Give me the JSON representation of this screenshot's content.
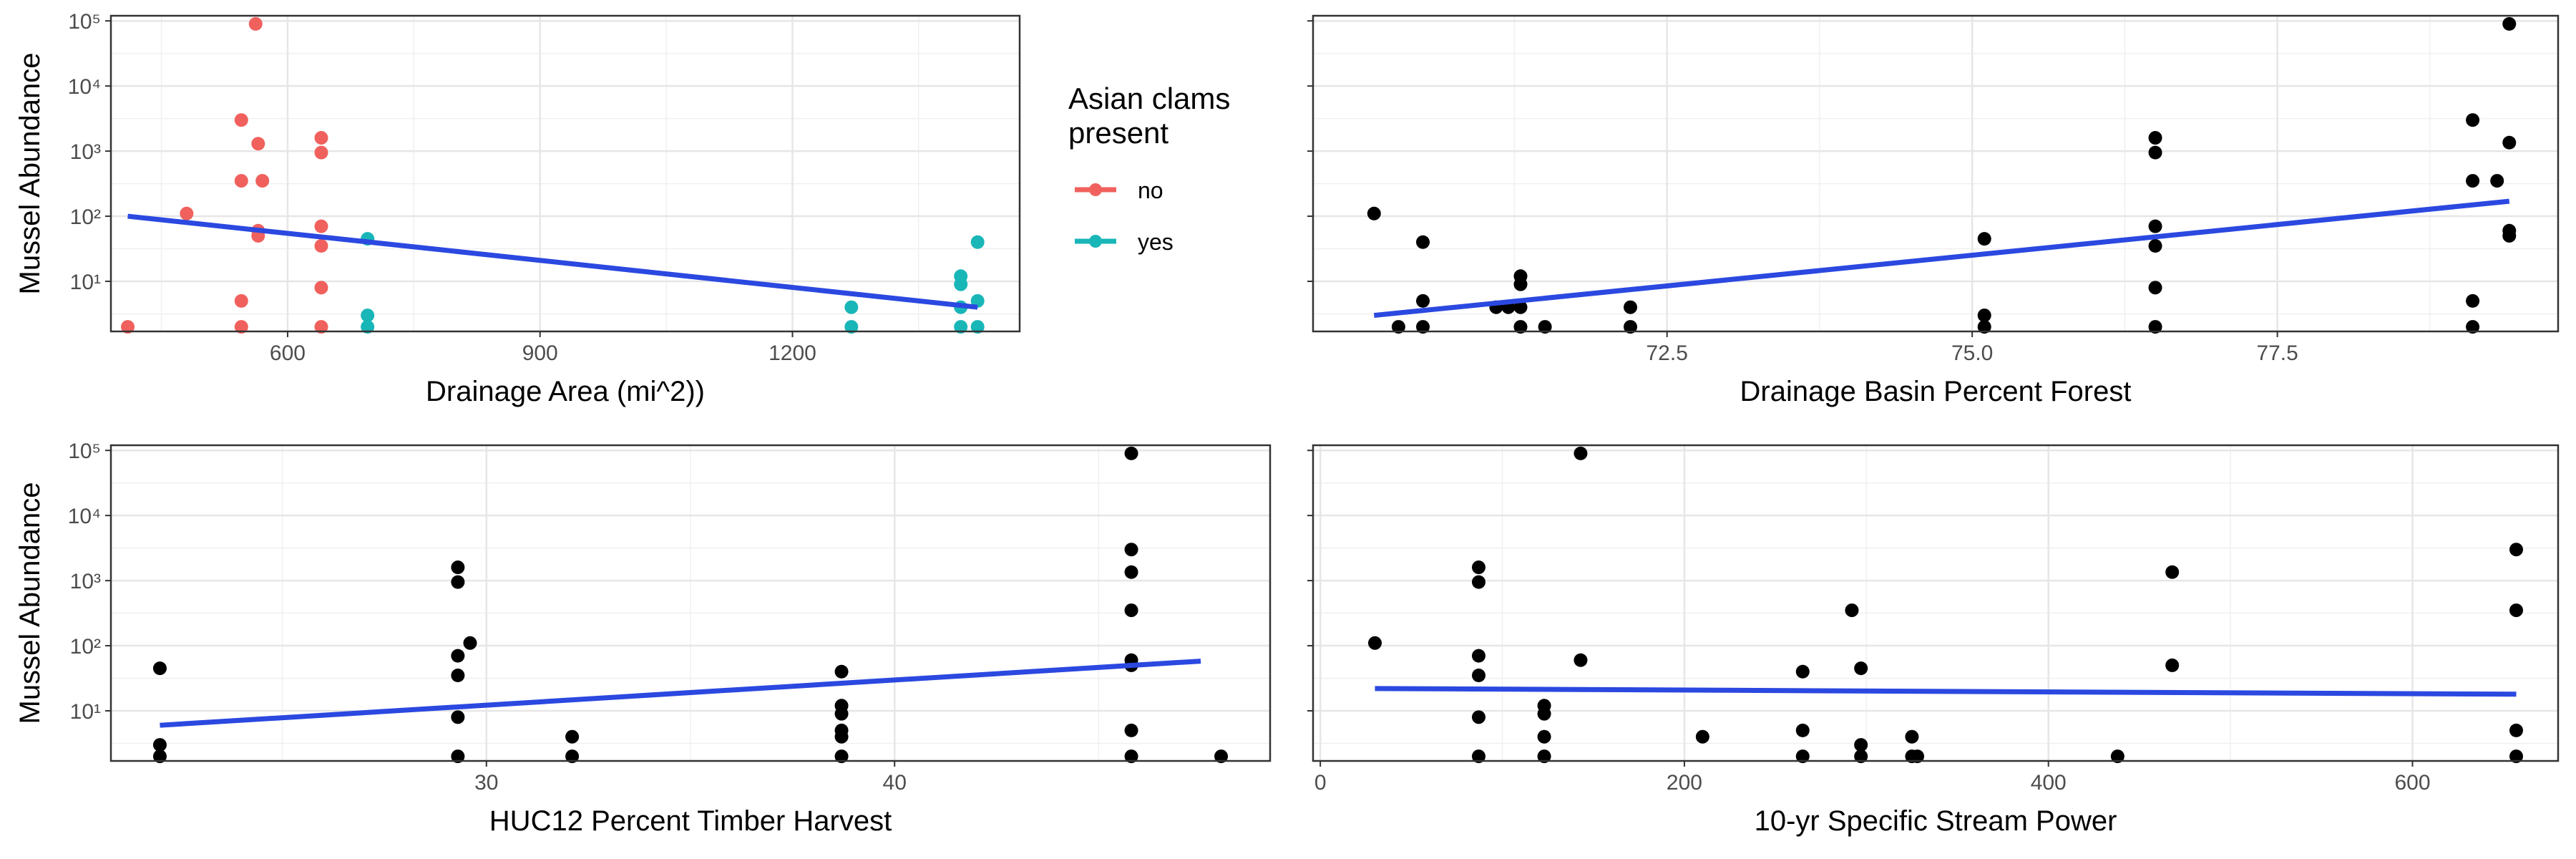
{
  "colors": {
    "no": "#F0615D",
    "yes": "#19B6B8",
    "fit": "#2B48E0",
    "point": "#000000"
  },
  "legend": {
    "title_line1": "Asian clams",
    "title_line2": "present",
    "items": [
      "no",
      "yes"
    ]
  },
  "chart_data": [
    {
      "type": "scatter",
      "xlabel": "Drainage Area (mi^2))",
      "ylabel": "Mussel Abundance",
      "y_scale": "log10",
      "xlim": [
        390,
        1470
      ],
      "ylim": [
        1.7,
        120000
      ],
      "x_ticks": [
        600,
        900,
        1200
      ],
      "y_ticks": [
        {
          "v": 10,
          "label": "10¹"
        },
        {
          "v": 100,
          "label": "10²"
        },
        {
          "v": 1000,
          "label": "10³"
        },
        {
          "v": 10000,
          "label": "10⁴"
        },
        {
          "v": 100000,
          "label": "10⁵"
        }
      ],
      "series": [
        {
          "name": "no",
          "color_key": "no",
          "points": [
            [
              410,
              2
            ],
            [
              480,
              110
            ],
            [
              545,
              3000
            ],
            [
              545,
              350
            ],
            [
              545,
              5
            ],
            [
              545,
              2
            ],
            [
              562,
              90000
            ],
            [
              565,
              1300
            ],
            [
              565,
              60
            ],
            [
              565,
              50
            ],
            [
              570,
              350
            ],
            [
              640,
              1600
            ],
            [
              640,
              950
            ],
            [
              640,
              70
            ],
            [
              640,
              35
            ],
            [
              640,
              8
            ],
            [
              640,
              2
            ]
          ]
        },
        {
          "name": "yes",
          "color_key": "yes",
          "points": [
            [
              695,
              45
            ],
            [
              695,
              3
            ],
            [
              695,
              2
            ],
            [
              1270,
              4
            ],
            [
              1270,
              2
            ],
            [
              1400,
              12
            ],
            [
              1400,
              9
            ],
            [
              1400,
              4
            ],
            [
              1400,
              2
            ],
            [
              1420,
              40
            ],
            [
              1420,
              5
            ],
            [
              1420,
              2
            ]
          ]
        }
      ],
      "fit": [
        [
          410,
          100
        ],
        [
          1420,
          4
        ]
      ]
    },
    {
      "type": "scatter",
      "xlabel": "Drainage Basin Percent Forest",
      "ylabel": "",
      "y_scale": "log10",
      "xlim": [
        69.6,
        79.8
      ],
      "ylim": [
        1.7,
        120000
      ],
      "x_ticks": [
        72.5,
        75.0,
        77.5
      ],
      "x_tick_labels": [
        "72.5",
        "75.0",
        "77.5"
      ],
      "y_ticks": [
        {
          "v": 10,
          "label": ""
        },
        {
          "v": 100,
          "label": ""
        },
        {
          "v": 1000,
          "label": ""
        },
        {
          "v": 10000,
          "label": ""
        },
        {
          "v": 100000,
          "label": ""
        }
      ],
      "series": [
        {
          "name": "",
          "color_key": "point",
          "points": [
            [
              70.1,
              110
            ],
            [
              70.3,
              2
            ],
            [
              70.5,
              40
            ],
            [
              70.5,
              5
            ],
            [
              70.5,
              2
            ],
            [
              71.1,
              4
            ],
            [
              71.2,
              4
            ],
            [
              71.3,
              12
            ],
            [
              71.3,
              9
            ],
            [
              71.3,
              4
            ],
            [
              71.3,
              2
            ],
            [
              71.5,
              2
            ],
            [
              72.2,
              4
            ],
            [
              72.2,
              2
            ],
            [
              75.1,
              45
            ],
            [
              75.1,
              3
            ],
            [
              75.1,
              2
            ],
            [
              76.5,
              1600
            ],
            [
              76.5,
              950
            ],
            [
              76.5,
              70
            ],
            [
              76.5,
              35
            ],
            [
              76.5,
              8
            ],
            [
              76.5,
              2
            ],
            [
              79.1,
              3000
            ],
            [
              79.1,
              350
            ],
            [
              79.1,
              5
            ],
            [
              79.1,
              2
            ],
            [
              79.3,
              350
            ],
            [
              79.4,
              90000
            ],
            [
              79.4,
              1350
            ],
            [
              79.4,
              60
            ],
            [
              79.4,
              50
            ]
          ]
        }
      ],
      "fit": [
        [
          70.1,
          3
        ],
        [
          79.4,
          170
        ]
      ]
    },
    {
      "type": "scatter",
      "xlabel": "HUC12 Percent Timber Harvest",
      "ylabel": "Mussel Abundance",
      "y_scale": "log10",
      "xlim": [
        20.8,
        49.2
      ],
      "ylim": [
        1.7,
        120000
      ],
      "x_ticks": [
        30,
        40
      ],
      "y_ticks": [
        {
          "v": 10,
          "label": "10¹"
        },
        {
          "v": 100,
          "label": "10²"
        },
        {
          "v": 1000,
          "label": "10³"
        },
        {
          "v": 10000,
          "label": "10⁴"
        },
        {
          "v": 100000,
          "label": "10⁵"
        }
      ],
      "series": [
        {
          "name": "",
          "color_key": "point",
          "points": [
            [
              22,
              45
            ],
            [
              22,
              3
            ],
            [
              22,
              2
            ],
            [
              29.3,
              1600
            ],
            [
              29.3,
              950
            ],
            [
              29.3,
              70
            ],
            [
              29.3,
              35
            ],
            [
              29.3,
              8
            ],
            [
              29.3,
              2
            ],
            [
              29.6,
              110
            ],
            [
              32.1,
              4
            ],
            [
              32.1,
              2
            ],
            [
              38.7,
              40
            ],
            [
              38.7,
              12
            ],
            [
              38.7,
              9
            ],
            [
              38.7,
              5
            ],
            [
              38.7,
              4
            ],
            [
              38.7,
              2
            ],
            [
              45.8,
              90000
            ],
            [
              45.8,
              3000
            ],
            [
              45.8,
              1350
            ],
            [
              45.8,
              350
            ],
            [
              45.8,
              60
            ],
            [
              45.8,
              50
            ],
            [
              45.8,
              5
            ],
            [
              45.8,
              2
            ],
            [
              48,
              2
            ]
          ]
        }
      ],
      "fit": [
        [
          22,
          6
        ],
        [
          47.5,
          58
        ]
      ]
    },
    {
      "type": "scatter",
      "xlabel": "10-yr Specific Stream Power",
      "ylabel": "",
      "y_scale": "log10",
      "xlim": [
        -4,
        680
      ],
      "ylim": [
        1.7,
        120000
      ],
      "x_ticks": [
        0,
        200,
        400,
        600
      ],
      "y_ticks": [
        {
          "v": 10,
          "label": ""
        },
        {
          "v": 100,
          "label": ""
        },
        {
          "v": 1000,
          "label": ""
        },
        {
          "v": 10000,
          "label": ""
        },
        {
          "v": 100000,
          "label": ""
        }
      ],
      "series": [
        {
          "name": "",
          "color_key": "point",
          "points": [
            [
              30,
              110
            ],
            [
              87,
              1600
            ],
            [
              87,
              950
            ],
            [
              87,
              70
            ],
            [
              87,
              35
            ],
            [
              87,
              8
            ],
            [
              87,
              2
            ],
            [
              123,
              12
            ],
            [
              123,
              9
            ],
            [
              123,
              4
            ],
            [
              123,
              2
            ],
            [
              143,
              90000
            ],
            [
              143,
              60
            ],
            [
              210,
              4
            ],
            [
              265,
              40
            ],
            [
              265,
              5
            ],
            [
              265,
              2
            ],
            [
              292,
              350
            ],
            [
              297,
              45
            ],
            [
              297,
              3
            ],
            [
              297,
              2
            ],
            [
              325,
              4
            ],
            [
              325,
              2
            ],
            [
              328,
              2
            ],
            [
              438,
              2
            ],
            [
              468,
              1350
            ],
            [
              468,
              50
            ],
            [
              657,
              3000
            ],
            [
              657,
              350
            ],
            [
              657,
              5
            ],
            [
              657,
              2
            ]
          ]
        }
      ],
      "fit": [
        [
          30,
          22
        ],
        [
          657,
          18
        ]
      ]
    }
  ]
}
